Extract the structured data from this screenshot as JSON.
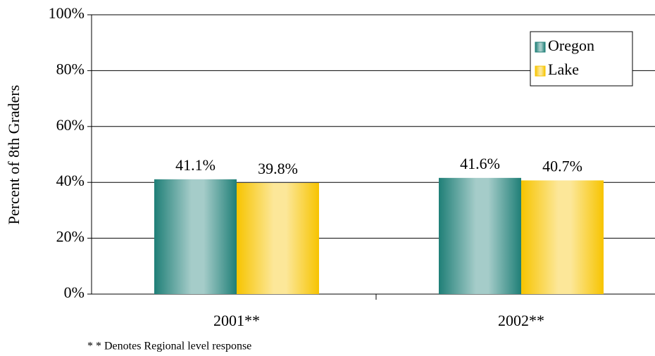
{
  "chart_data": {
    "type": "bar",
    "y_label": "Percent of 8th Graders",
    "categories": [
      "2001**",
      "2002**"
    ],
    "series": [
      {
        "name": "Oregon",
        "color": "#1f7f77",
        "values": [
          41.1,
          41.6
        ],
        "value_labels": [
          "41.1%",
          "41.6%"
        ]
      },
      {
        "name": "Lake",
        "color": "#f7c400",
        "values": [
          39.8,
          40.7
        ],
        "value_labels": [
          "39.8%",
          "40.7%"
        ]
      }
    ],
    "ylim": [
      0,
      100
    ],
    "yticks": [
      {
        "value": 0,
        "label": "0%"
      },
      {
        "value": 20,
        "label": "20%"
      },
      {
        "value": 40,
        "label": "40%"
      },
      {
        "value": 60,
        "label": "60%"
      },
      {
        "value": 80,
        "label": "80%"
      },
      {
        "value": 100,
        "label": "100%"
      }
    ],
    "grid": true,
    "legend": "top-right",
    "footnote": "* * Denotes Regional level response"
  }
}
